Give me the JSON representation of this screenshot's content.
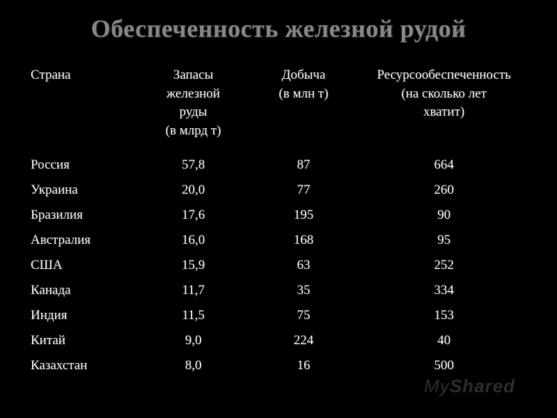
{
  "slide": {
    "title": "Обеспеченность железной рудой",
    "title_color": "#888888",
    "background_color": "#000000",
    "text_color": "#ffffff"
  },
  "table": {
    "columns": [
      {
        "label": "Страна",
        "align": "left",
        "width": "22%"
      },
      {
        "label": "Запасы железной руды (в млрд т)",
        "align": "center",
        "width": "22%"
      },
      {
        "label": "Добыча (в млн т)",
        "align": "center",
        "width": "22%"
      },
      {
        "label": "Ресурсообеспеченность (на сколько лет хватит)",
        "align": "center",
        "width": "34%"
      }
    ],
    "header_fontsize": 19,
    "body_fontsize": 19,
    "rows": [
      {
        "country": "Россия",
        "reserves": "57,8",
        "extraction": "87",
        "supply": "664"
      },
      {
        "country": "Украина",
        "reserves": "20,0",
        "extraction": "77",
        "supply": "260"
      },
      {
        "country": "Бразилия",
        "reserves": "17,6",
        "extraction": "195",
        "supply": "90"
      },
      {
        "country": "Австралия",
        "reserves": "16,0",
        "extraction": "168",
        "supply": "95"
      },
      {
        "country": "США",
        "reserves": "15,9",
        "extraction": "63",
        "supply": "252"
      },
      {
        "country": "Канада",
        "reserves": "11,7",
        "extraction": "35",
        "supply": "334"
      },
      {
        "country": "Индия",
        "reserves": "11,5",
        "extraction": "75",
        "supply": "153"
      },
      {
        "country": "Китай",
        "reserves": "9,0",
        "extraction": "224",
        "supply": "40"
      },
      {
        "country": "Казахстан",
        "reserves": "8,0",
        "extraction": "16",
        "supply": "500"
      }
    ]
  },
  "watermark": {
    "part1": "My",
    "part2": "Shared",
    "color": "rgba(180,180,180,0.25)"
  }
}
